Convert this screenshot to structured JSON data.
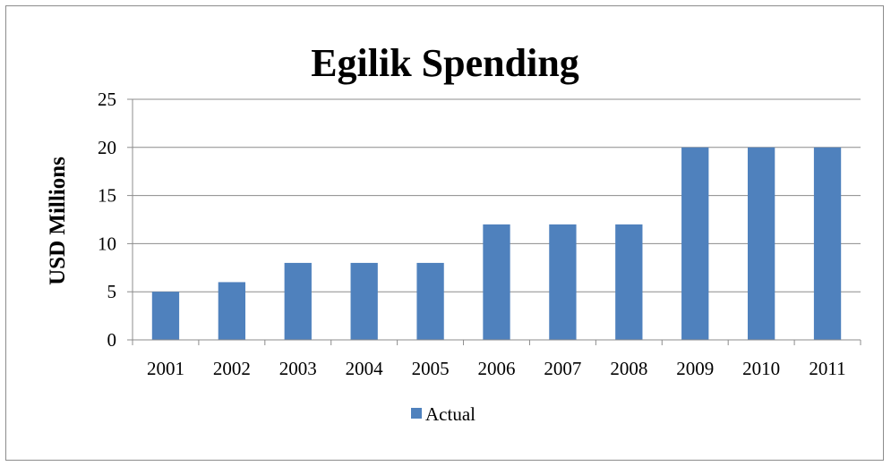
{
  "chart_data": {
    "type": "bar",
    "title": "Egilik Spending",
    "xlabel": "",
    "ylabel": "USD Millions",
    "categories": [
      "2001",
      "2002",
      "2003",
      "2004",
      "2005",
      "2006",
      "2007",
      "2008",
      "2009",
      "2010",
      "2011"
    ],
    "series": [
      {
        "name": "Actual",
        "values": [
          5,
          6,
          8,
          8,
          8,
          12,
          12,
          12,
          20,
          20,
          20
        ],
        "color": "#4f81bd"
      }
    ],
    "ylim": [
      0,
      25
    ],
    "yticks": [
      0,
      5,
      10,
      15,
      20,
      25
    ],
    "grid": true,
    "legend_position": "bottom"
  }
}
